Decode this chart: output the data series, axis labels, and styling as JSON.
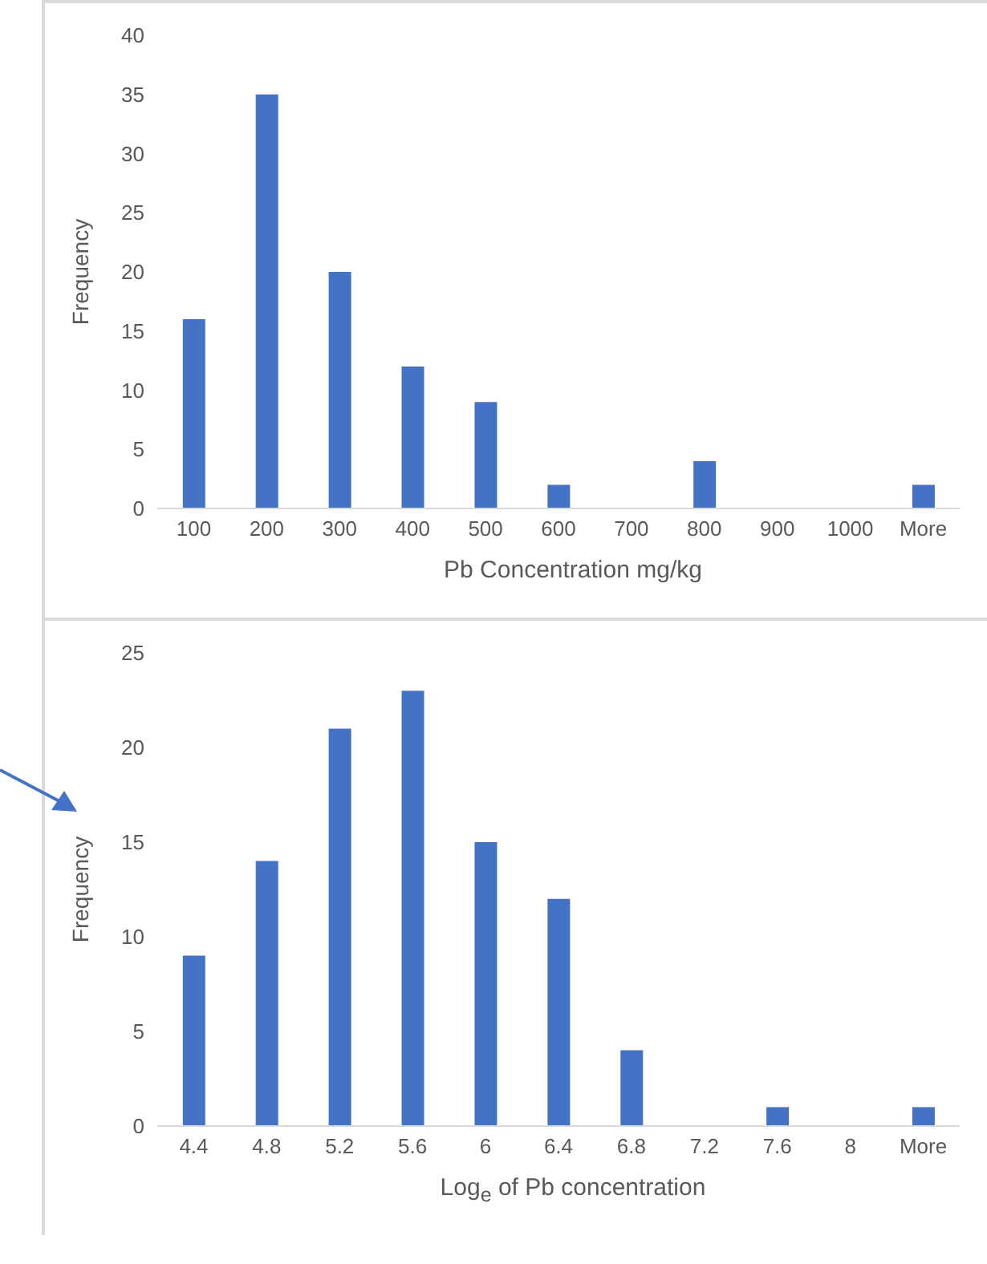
{
  "chart_data": [
    {
      "type": "bar",
      "categories": [
        "100",
        "200",
        "300",
        "400",
        "500",
        "600",
        "700",
        "800",
        "900",
        "1000",
        "More"
      ],
      "values": [
        16,
        35,
        20,
        12,
        9,
        2,
        0,
        4,
        0,
        0,
        2
      ],
      "color": "#4472c4",
      "xlabel": "Pb Concentration mg/kg",
      "ylabel": "Frequency",
      "ylim": [
        0,
        40
      ],
      "yticks": [
        0,
        5,
        10,
        15,
        20,
        25,
        30,
        35,
        40
      ],
      "grid": false,
      "legend": false
    },
    {
      "type": "bar",
      "categories": [
        "4.4",
        "4.8",
        "5.2",
        "5.6",
        "6",
        "6.4",
        "6.8",
        "7.2",
        "7.6",
        "8",
        "More"
      ],
      "values": [
        9,
        14,
        21,
        23,
        15,
        12,
        4,
        0,
        1,
        0,
        1
      ],
      "color": "#4472c4",
      "xlabel": "Log$_{e}$ of Pb concentration",
      "ylabel": "Frequency",
      "ylim": [
        0,
        25
      ],
      "yticks": [
        0,
        5,
        10,
        15,
        20,
        25
      ],
      "grid": false,
      "legend": false
    }
  ]
}
